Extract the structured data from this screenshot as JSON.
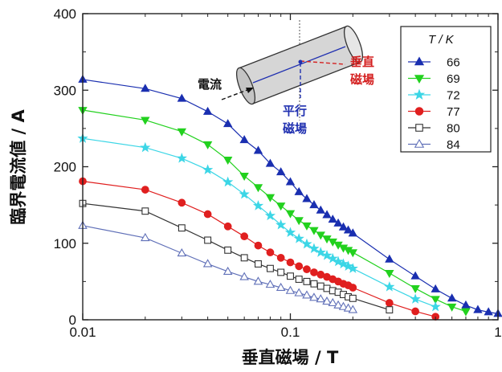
{
  "chart_data": {
    "type": "scatter",
    "title": "",
    "xlabel": "垂直磁場 / T",
    "ylabel": "臨界電流値 / A",
    "xscale": "log",
    "xlim": [
      0.01,
      1
    ],
    "ylim": [
      0,
      400
    ],
    "xticks": [
      {
        "value": 0.01,
        "label": "0.01"
      },
      {
        "value": 0.1,
        "label": "0.1"
      },
      {
        "value": 1,
        "label": "1"
      }
    ],
    "yticks": [
      0,
      100,
      200,
      300,
      400
    ],
    "grid": false,
    "legend": {
      "title": "T / K",
      "position": "top-right"
    },
    "series": [
      {
        "name": "66",
        "color": "#1a2fb0",
        "marker": "triangle-up",
        "filled": true,
        "x": [
          0.01,
          0.02,
          0.03,
          0.04,
          0.05,
          0.06,
          0.07,
          0.08,
          0.09,
          0.1,
          0.11,
          0.12,
          0.13,
          0.14,
          0.15,
          0.16,
          0.17,
          0.18,
          0.19,
          0.2,
          0.3,
          0.4,
          0.5,
          0.6,
          0.7,
          0.8,
          0.9,
          1.0
        ],
        "y": [
          314,
          302,
          289,
          272,
          256,
          235,
          221,
          204,
          193,
          180,
          167,
          158,
          150,
          143,
          137,
          131,
          126,
          121,
          117,
          113,
          79,
          57,
          40,
          28,
          19,
          13,
          10,
          8
        ]
      },
      {
        "name": "69",
        "color": "#22d11e",
        "marker": "triangle-down",
        "filled": true,
        "x": [
          0.01,
          0.02,
          0.03,
          0.04,
          0.05,
          0.06,
          0.07,
          0.08,
          0.09,
          0.1,
          0.11,
          0.12,
          0.13,
          0.14,
          0.15,
          0.16,
          0.17,
          0.18,
          0.19,
          0.2,
          0.3,
          0.4,
          0.5,
          0.6,
          0.7
        ],
        "y": [
          274,
          261,
          246,
          229,
          209,
          188,
          173,
          160,
          149,
          139,
          130,
          123,
          117,
          111,
          106,
          102,
          98,
          94,
          91,
          88,
          61,
          41,
          27,
          17,
          11
        ]
      },
      {
        "name": "72",
        "color": "#3cd6e6",
        "marker": "star",
        "filled": true,
        "x": [
          0.01,
          0.02,
          0.03,
          0.04,
          0.05,
          0.06,
          0.07,
          0.08,
          0.09,
          0.1,
          0.11,
          0.12,
          0.13,
          0.14,
          0.15,
          0.16,
          0.17,
          0.18,
          0.19,
          0.2,
          0.3,
          0.4,
          0.5
        ],
        "y": [
          237,
          225,
          211,
          196,
          180,
          164,
          149,
          136,
          124,
          114,
          106,
          99,
          93,
          88,
          84,
          80,
          76,
          73,
          70,
          67,
          43,
          27,
          17
        ]
      },
      {
        "name": "77",
        "color": "#e01f1f",
        "marker": "circle",
        "filled": true,
        "x": [
          0.01,
          0.02,
          0.03,
          0.04,
          0.05,
          0.06,
          0.07,
          0.08,
          0.09,
          0.1,
          0.11,
          0.12,
          0.13,
          0.14,
          0.15,
          0.16,
          0.17,
          0.18,
          0.19,
          0.2,
          0.3,
          0.4,
          0.5
        ],
        "y": [
          181,
          170,
          153,
          138,
          122,
          109,
          97,
          88,
          81,
          75,
          70,
          66,
          62,
          59,
          56,
          53,
          50,
          47,
          45,
          42,
          22,
          11,
          4
        ]
      },
      {
        "name": "80",
        "color": "#333333",
        "marker": "square",
        "filled": false,
        "x": [
          0.01,
          0.02,
          0.03,
          0.04,
          0.05,
          0.06,
          0.07,
          0.08,
          0.09,
          0.1,
          0.11,
          0.12,
          0.13,
          0.14,
          0.15,
          0.16,
          0.17,
          0.18,
          0.19,
          0.2,
          0.3
        ],
        "y": [
          152,
          142,
          120,
          104,
          91,
          81,
          73,
          67,
          62,
          57,
          53,
          50,
          47,
          44,
          41,
          38,
          36,
          33,
          30,
          28,
          13
        ]
      },
      {
        "name": "84",
        "color": "#6070b8",
        "marker": "triangle-up",
        "filled": false,
        "x": [
          0.01,
          0.02,
          0.03,
          0.04,
          0.05,
          0.06,
          0.07,
          0.08,
          0.09,
          0.1,
          0.11,
          0.12,
          0.13,
          0.14,
          0.15,
          0.16,
          0.17,
          0.18,
          0.19,
          0.2
        ],
        "y": [
          123,
          107,
          87,
          73,
          63,
          56,
          50,
          46,
          42,
          38,
          35,
          32,
          29,
          27,
          24,
          22,
          19,
          17,
          15,
          13
        ]
      }
    ],
    "annotations": {
      "current": "電流",
      "perp_line1": "垂直",
      "perp_line2": "磁場",
      "para_line1": "平行",
      "para_line2": "磁場"
    },
    "colors": {
      "current": "#111111",
      "perpendicular": "#d42020",
      "parallel": "#2030b0"
    }
  }
}
